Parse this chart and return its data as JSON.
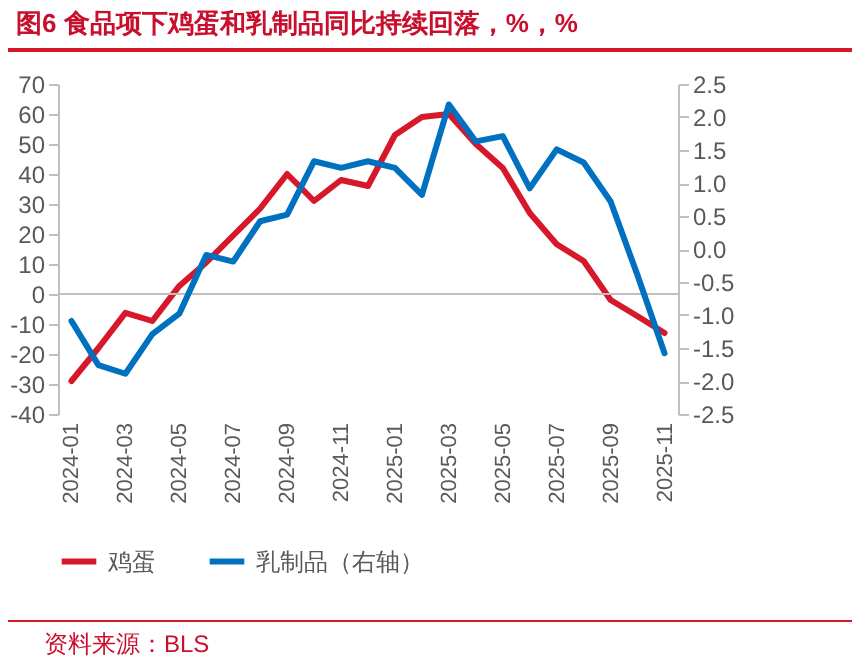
{
  "chart_data": {
    "type": "line",
    "title": "图6  食品项下鸡蛋和乳制品同比持续回落，%，%",
    "categories": [
      "2024-01",
      null,
      "2024-03",
      null,
      "2024-05",
      null,
      "2024-07",
      null,
      "2024-09",
      null,
      "2024-11",
      null,
      "2025-01",
      null,
      "2025-03",
      null,
      "2025-05",
      null,
      "2025-07",
      null,
      "2025-09",
      null,
      "2025-11"
    ],
    "series": [
      {
        "name": "鸡蛋",
        "color": "#d7182a",
        "values": [
          -29,
          -18,
          -6.3,
          -9,
          2.7,
          10.5,
          19.5,
          28.5,
          40,
          31,
          38,
          36,
          53,
          59,
          60,
          50,
          42,
          27,
          16.6,
          11,
          -2,
          -7.4,
          -13
        ]
      },
      {
        "name": "乳制品（右轴）",
        "color": "#0070c0",
        "axis": "y2",
        "values": [
          -1.09,
          -1.76,
          -1.89,
          -1.29,
          -0.98,
          -0.09,
          -0.19,
          0.42,
          0.52,
          1.33,
          1.23,
          1.33,
          1.23,
          0.82,
          2.19,
          1.63,
          1.71,
          0.92,
          1.51,
          1.31,
          0.72,
          -0.4,
          -1.58
        ]
      }
    ],
    "ylim": [
      -40,
      70
    ],
    "yticks": [
      -40,
      -30,
      -20,
      -10,
      0,
      10,
      20,
      30,
      40,
      50,
      60,
      70
    ],
    "y2lim": [
      -2.5,
      2.5
    ],
    "y2ticks": [
      {
        "value": -2.5,
        "label": "-2.5"
      },
      {
        "value": -2,
        "label": "-2.0"
      },
      {
        "value": -1.5,
        "label": "-1.5"
      },
      {
        "value": -1,
        "label": "-1.0"
      },
      {
        "value": -0.5,
        "label": "-0.5"
      },
      {
        "value": 0,
        "label": "0.0"
      },
      {
        "value": 0.5,
        "label": "0.5"
      },
      {
        "value": 1,
        "label": "1.0"
      },
      {
        "value": 1.5,
        "label": "1.5"
      },
      {
        "value": 2,
        "label": "2.0"
      },
      {
        "value": 2.5,
        "label": "2.5"
      }
    ],
    "legend": "bottom",
    "line_style": "solid",
    "annotations": [
      "资料来源：BLS"
    ]
  }
}
